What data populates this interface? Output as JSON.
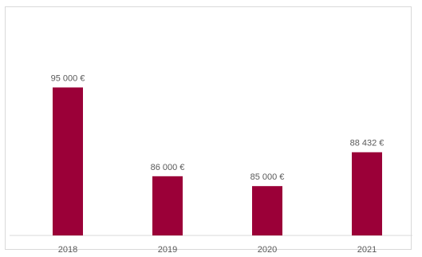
{
  "chart_data": {
    "type": "bar",
    "categories": [
      "2018",
      "2019",
      "2020",
      "2021"
    ],
    "values": [
      95000,
      86000,
      85000,
      88432
    ],
    "value_labels": [
      "95 000 €",
      "86 000 €",
      "85 000 €",
      "88 432 €"
    ],
    "title": "",
    "xlabel": "",
    "ylabel": "",
    "ylim": [
      80000,
      96500
    ],
    "grid": false,
    "legend": "none",
    "colors": {
      "bar": "#9b0038",
      "axis": "#d9d9d9",
      "text": "#595959"
    }
  }
}
